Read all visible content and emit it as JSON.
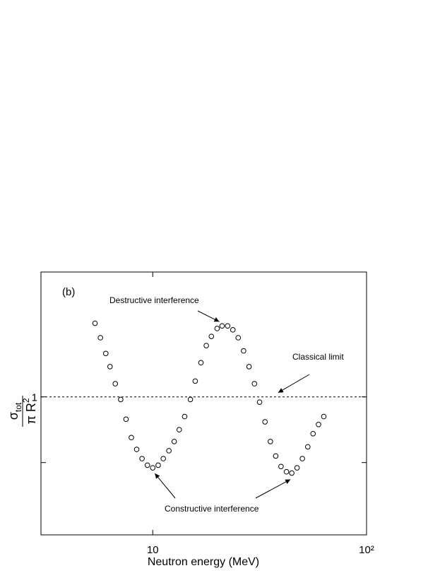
{
  "chart_data": {
    "type": "scatter",
    "panel_label": "(b)",
    "xlabel": "Neutron energy (MeV)",
    "ylabel": {
      "numerator": "σ",
      "numerator_sub": "tot",
      "denominator": "π R",
      "denominator_sup": "2"
    },
    "xscale": "log",
    "xlim": [
      3,
      100
    ],
    "ylim": [
      -0.05,
      1.95
    ],
    "xticks": [
      10,
      {
        "value": 100,
        "label": "10²"
      }
    ],
    "yticks": [
      1
    ],
    "minor_yticks": [
      0.5
    ],
    "reference_line": 1,
    "color": "#000000",
    "annotations": [
      {
        "text": "Destructive interference",
        "target": [
          21.1,
          1.54
        ]
      },
      {
        "text": "Classical limit",
        "target": [
          39.8,
          1
        ]
      },
      {
        "text": "Constructive interference",
        "target": [
          10.0,
          0.46
        ]
      },
      {
        "text": "Constructive interference",
        "target": [
          44.7,
          0.42
        ],
        "label_shared": true
      }
    ],
    "x": [
      5.37,
      5.69,
      6.03,
      6.31,
      6.68,
      7.08,
      7.5,
      7.94,
      8.41,
      8.91,
      9.44,
      10.0,
      10.6,
      11.2,
      11.9,
      12.6,
      13.3,
      14.1,
      15.0,
      15.8,
      16.8,
      17.8,
      18.8,
      20.0,
      21.1,
      22.4,
      23.7,
      25.1,
      26.6,
      28.2,
      29.9,
      31.6,
      33.5,
      35.5,
      37.6,
      39.8,
      42.2,
      44.7,
      47.3,
      50.1,
      53.1,
      56.2,
      59.6,
      63.1
    ],
    "values": [
      1.56,
      1.45,
      1.33,
      1.23,
      1.1,
      0.98,
      0.83,
      0.69,
      0.6,
      0.53,
      0.48,
      0.46,
      0.48,
      0.53,
      0.59,
      0.66,
      0.75,
      0.85,
      0.98,
      1.12,
      1.26,
      1.39,
      1.46,
      1.52,
      1.54,
      1.54,
      1.51,
      1.45,
      1.35,
      1.23,
      1.1,
      0.96,
      0.81,
      0.66,
      0.55,
      0.47,
      0.43,
      0.42,
      0.46,
      0.53,
      0.62,
      0.72,
      0.79,
      0.85
    ]
  }
}
